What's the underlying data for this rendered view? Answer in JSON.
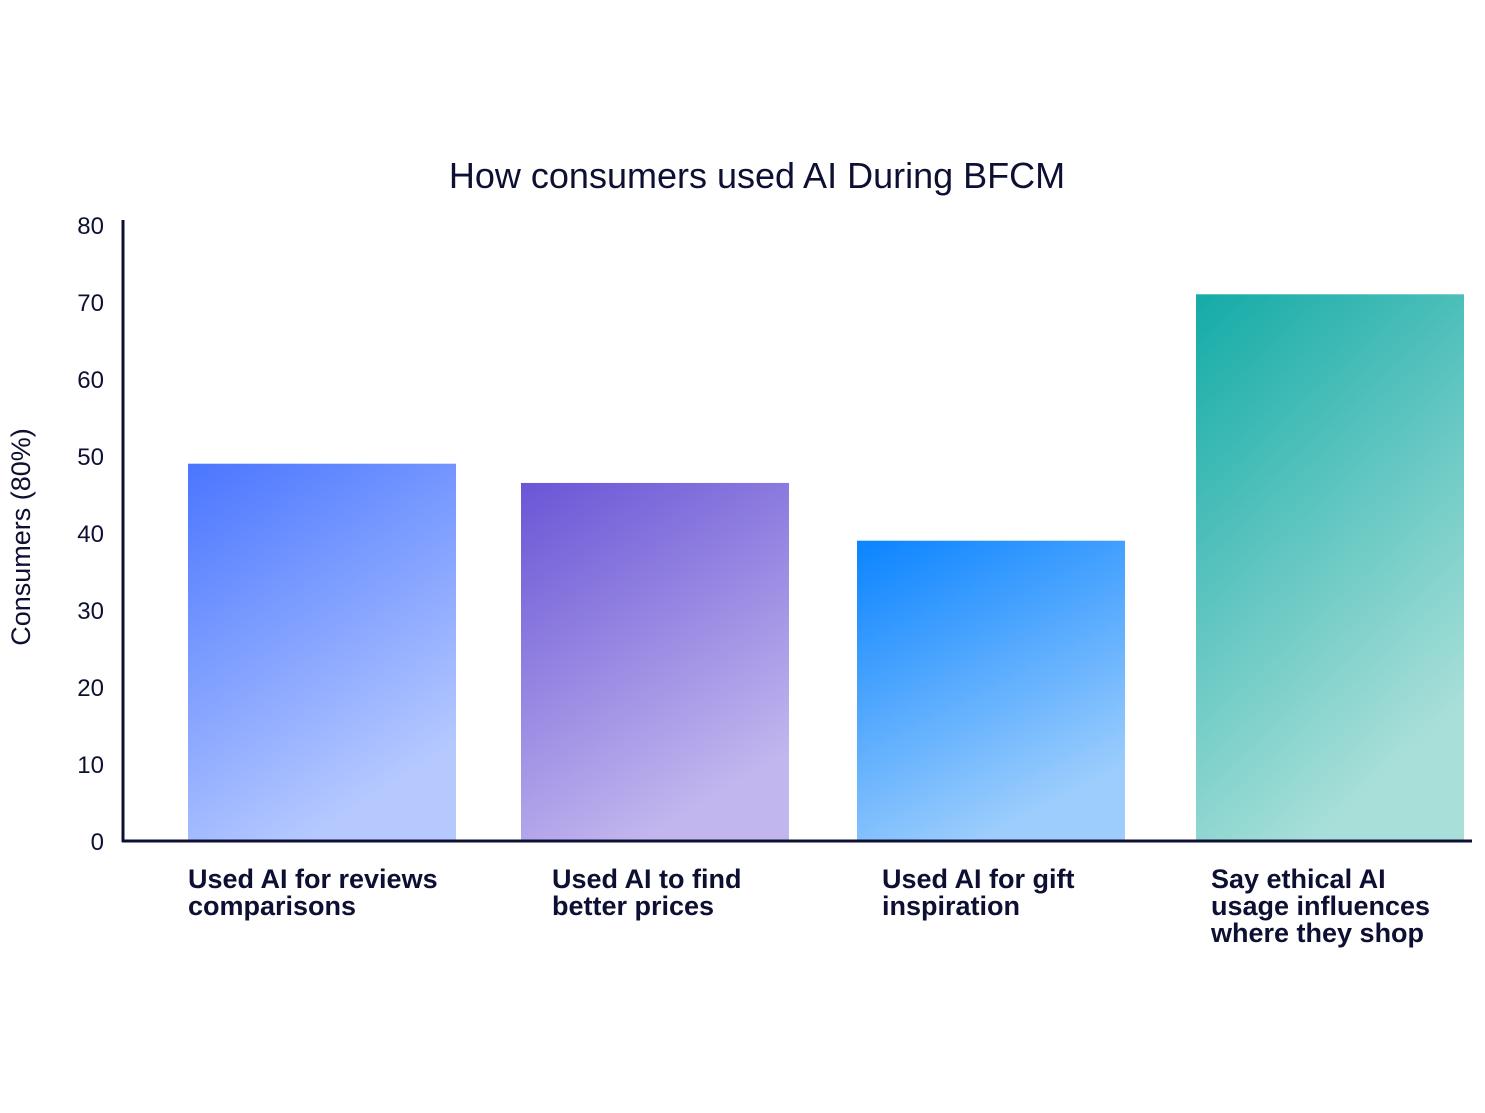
{
  "chart_data": {
    "type": "bar",
    "title": "How consumers used AI During BFCM",
    "xlabel": "",
    "ylabel": "Consumers (80%)",
    "ylim": [
      0,
      80
    ],
    "yticks": [
      "0",
      "10",
      "20",
      "30",
      "40",
      "50",
      "60",
      "70",
      "80"
    ],
    "categories": [
      [
        "Used AI for reviews",
        "comparisons"
      ],
      [
        "Used AI to find",
        "better prices"
      ],
      [
        "Used AI for gift",
        "inspiration"
      ],
      [
        "Say ethical AI",
        "usage influences",
        "where they shop"
      ]
    ],
    "values": [
      49,
      46.5,
      39,
      71
    ],
    "grid": false,
    "legend": "none",
    "colors": [
      {
        "top": "#4a76ff",
        "bottom": "#b6c9ff"
      },
      {
        "top": "#6a55d6",
        "bottom": "#c2b6ee"
      },
      {
        "top": "#0a84ff",
        "bottom": "#9ccdfd"
      },
      {
        "top": "#14aba7",
        "bottom": "#a9dfd9"
      }
    ],
    "axis_color": "#0d1033"
  }
}
